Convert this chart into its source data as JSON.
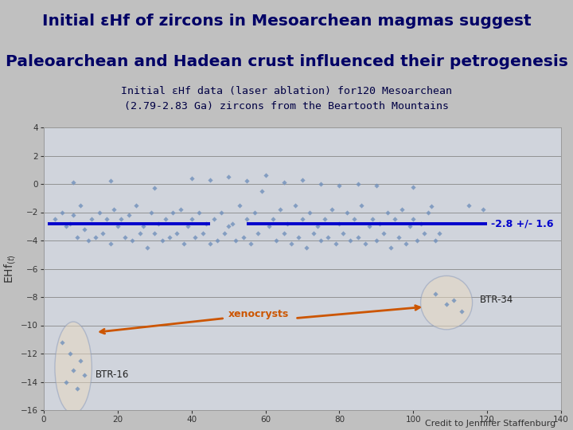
{
  "title_line1": "Initial εHf of zircons in Mesoarchean magmas suggest",
  "title_line2": "Paleoarchean and Hadean crust influenced their petrogenesis",
  "subtitle": "Initial εHf data (laser ablation) for120 Mesoarchean\n(2.79-2.83 Ga) zircons from the Beartooth Mountains",
  "xlim": [
    0,
    140
  ],
  "ylim": [
    -16,
    4
  ],
  "xticks": [
    0,
    20,
    40,
    60,
    80,
    100,
    120,
    140
  ],
  "yticks": [
    -16,
    -14,
    -12,
    -10,
    -8,
    -6,
    -4,
    -2,
    0,
    2,
    4
  ],
  "mean_line_y": -2.8,
  "mean_label": "-2.8 +/- 1.6",
  "mean_line_xstart": 1,
  "mean_line_xend": 120,
  "bg_color_outer": "#c0c0c0",
  "bg_color_plot": "#d0d4dc",
  "bg_color_subtitle": "#d0e8f4",
  "scatter_color": "#7090bb",
  "mean_line_color": "#0000cc",
  "arrow_color": "#cc5500",
  "title_color": "#000066",
  "credit_text": "Credit to Jennifer Staffenburg",
  "BTR34_label": "BTR-34",
  "BTR16_label": "BTR-16",
  "xenocrysts_label": "xenocrysts",
  "main_points_x": [
    3,
    5,
    6,
    7,
    8,
    9,
    10,
    11,
    12,
    13,
    14,
    15,
    16,
    17,
    18,
    19,
    20,
    21,
    22,
    23,
    24,
    25,
    26,
    27,
    28,
    29,
    30,
    31,
    32,
    33,
    34,
    35,
    36,
    37,
    38,
    39,
    40,
    41,
    42,
    43,
    44,
    45,
    46,
    47,
    48,
    49,
    50,
    51,
    52,
    53,
    54,
    55,
    56,
    57,
    58,
    59,
    61,
    62,
    63,
    64,
    65,
    66,
    67,
    68,
    69,
    70,
    71,
    72,
    73,
    74,
    75,
    76,
    77,
    78,
    79,
    80,
    81,
    82,
    83,
    84,
    85,
    86,
    87,
    88,
    89,
    90,
    91,
    92,
    93,
    94,
    95,
    96,
    97,
    98,
    99,
    100,
    101,
    102,
    103,
    104,
    105,
    106,
    107,
    115,
    119
  ],
  "main_points_y": [
    -2.5,
    -2.0,
    -3.0,
    -2.8,
    -2.2,
    -3.8,
    -1.5,
    -3.2,
    -4.0,
    -2.5,
    -3.8,
    -2.0,
    -3.5,
    -2.5,
    -4.2,
    -1.8,
    -3.0,
    -2.5,
    -3.8,
    -2.2,
    -4.0,
    -1.5,
    -3.5,
    -3.0,
    -4.5,
    -2.0,
    -3.5,
    -2.8,
    -4.0,
    -2.5,
    -3.8,
    -2.0,
    -3.5,
    -1.8,
    -4.2,
    -3.0,
    -2.5,
    -3.8,
    -2.0,
    -3.5,
    -2.8,
    -4.2,
    -2.5,
    -4.0,
    -2.0,
    -3.5,
    -3.0,
    -2.8,
    -4.0,
    -1.5,
    -3.8,
    -2.5,
    -4.2,
    -2.0,
    -3.5,
    -0.5,
    -3.0,
    -2.5,
    -4.0,
    -1.8,
    -3.5,
    -2.8,
    -4.2,
    -1.5,
    -3.8,
    -2.5,
    -4.5,
    -2.0,
    -3.5,
    -3.0,
    -4.0,
    -2.5,
    -3.8,
    -1.8,
    -4.2,
    -2.8,
    -3.5,
    -2.0,
    -4.0,
    -2.5,
    -3.8,
    -1.5,
    -4.2,
    -3.0,
    -2.5,
    -4.0,
    -2.8,
    -3.5,
    -2.0,
    -4.5,
    -2.5,
    -3.8,
    -1.8,
    -4.2,
    -3.0,
    -2.5,
    -4.0,
    -2.8,
    -3.5,
    -2.0,
    -1.6,
    -4.0,
    -3.5,
    -1.5,
    -1.8
  ],
  "near_zero_x": [
    8,
    18,
    50,
    70,
    60,
    80,
    40,
    55,
    90,
    100,
    75,
    30,
    65,
    85,
    45
  ],
  "near_zero_y": [
    0.1,
    0.2,
    0.5,
    0.3,
    0.6,
    -0.1,
    0.4,
    0.2,
    -0.1,
    -0.2,
    0.0,
    -0.3,
    0.1,
    0.0,
    0.3
  ],
  "btr34_points_x": [
    106,
    109,
    111,
    113
  ],
  "btr34_points_y": [
    -7.8,
    -8.5,
    -8.2,
    -9.0
  ],
  "btr16_points_x": [
    5,
    7,
    10,
    8,
    6,
    9,
    11
  ],
  "btr16_points_y": [
    -11.2,
    -12.0,
    -12.5,
    -13.2,
    -14.0,
    -14.5,
    -13.5
  ]
}
